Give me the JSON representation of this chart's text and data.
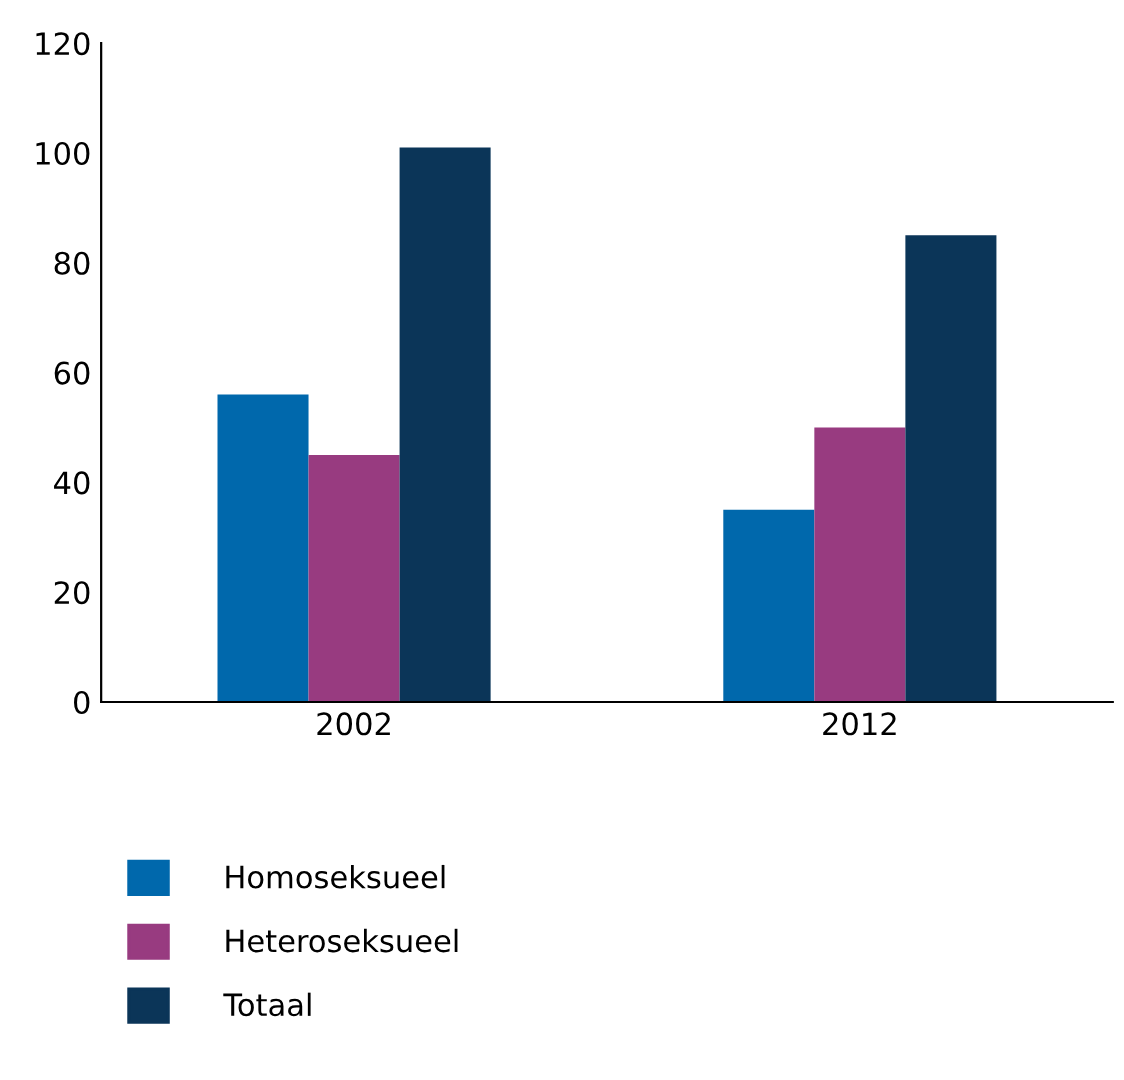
{
  "chart_data": {
    "type": "bar",
    "categories": [
      "2002",
      "2012"
    ],
    "series": [
      {
        "name": "Homoseksueel",
        "color": "#0068ac",
        "values": [
          56,
          35
        ]
      },
      {
        "name": "Heteroseksueel",
        "color": "#983b80",
        "values": [
          45,
          50
        ]
      },
      {
        "name": "Totaal",
        "color": "#0b3558",
        "values": [
          101,
          85
        ]
      }
    ],
    "ylim": [
      0,
      120
    ],
    "yticks": [
      0,
      20,
      40,
      60,
      80,
      100,
      120
    ],
    "grid": false,
    "legend": "bottom left"
  }
}
